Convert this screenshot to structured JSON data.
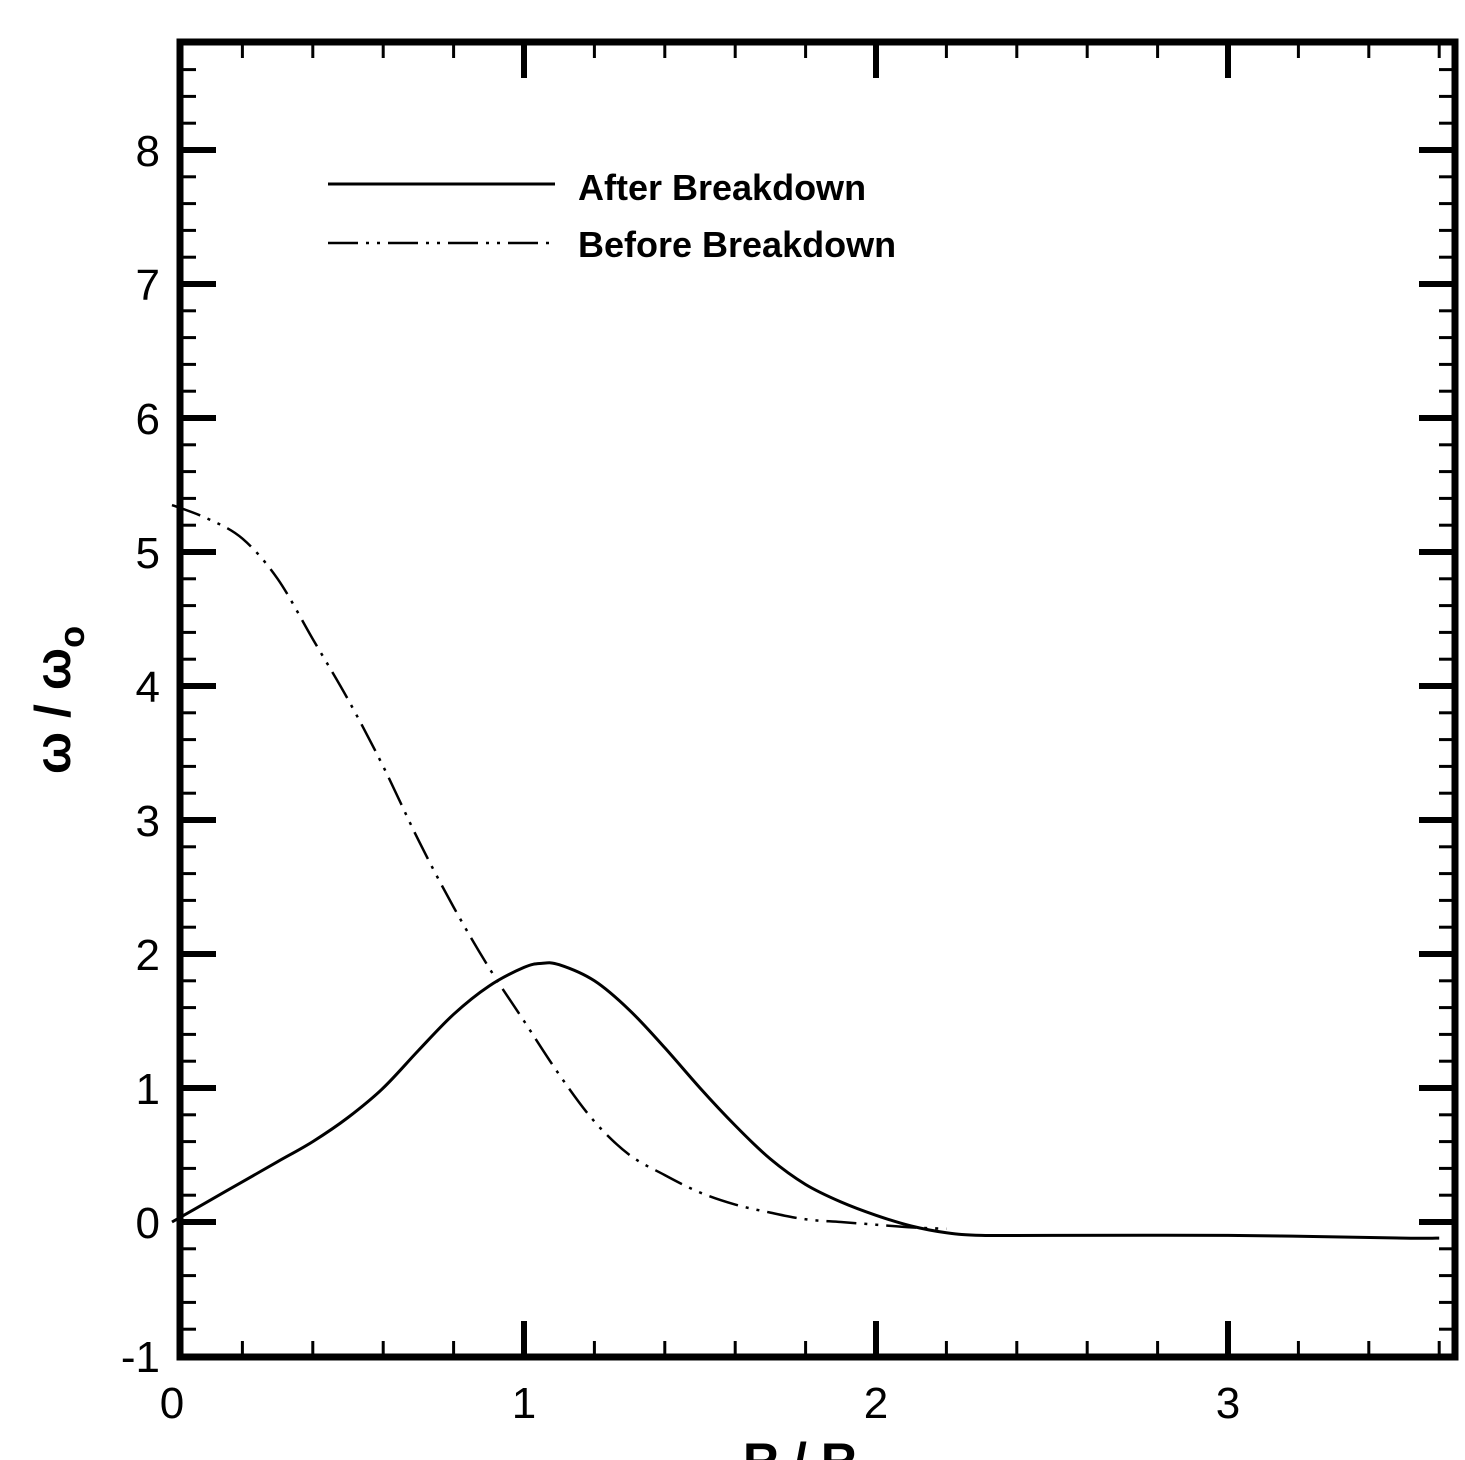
{
  "chart_data": {
    "type": "line",
    "xlabel": "R / R",
    "ylabel": "ω / ω",
    "ylabel_subscript": "o",
    "xlim": [
      0,
      3.6
    ],
    "ylim": [
      -1,
      8.8
    ],
    "x_ticks": [
      "0",
      "1",
      "2",
      "3"
    ],
    "y_ticks": [
      "-1",
      "0",
      "1",
      "2",
      "3",
      "4",
      "5",
      "6",
      "7",
      "8"
    ],
    "grid": false,
    "legend_position": "top-left",
    "series": [
      {
        "name": "After Breakdown",
        "style": "solid",
        "x": [
          0,
          0.1,
          0.2,
          0.3,
          0.4,
          0.5,
          0.6,
          0.7,
          0.8,
          0.9,
          1.0,
          1.05,
          1.1,
          1.2,
          1.3,
          1.4,
          1.5,
          1.6,
          1.7,
          1.8,
          1.9,
          2.0,
          2.1,
          2.2,
          2.3,
          2.5,
          3.0,
          3.5,
          3.6
        ],
        "y": [
          0.0,
          0.15,
          0.3,
          0.45,
          0.6,
          0.78,
          1.0,
          1.28,
          1.55,
          1.76,
          1.9,
          1.93,
          1.92,
          1.8,
          1.58,
          1.3,
          1.0,
          0.72,
          0.47,
          0.28,
          0.15,
          0.05,
          -0.03,
          -0.08,
          -0.1,
          -0.1,
          -0.1,
          -0.12,
          -0.12
        ]
      },
      {
        "name": "Before Breakdown",
        "style": "dash-dot-dot",
        "x": [
          0,
          0.1,
          0.2,
          0.3,
          0.4,
          0.5,
          0.6,
          0.7,
          0.8,
          0.9,
          1.0,
          1.1,
          1.2,
          1.3,
          1.4,
          1.5,
          1.6,
          1.7,
          1.8,
          1.9,
          2.0,
          2.1,
          2.2
        ],
        "y": [
          5.35,
          5.25,
          5.1,
          4.8,
          4.35,
          3.9,
          3.4,
          2.85,
          2.35,
          1.9,
          1.5,
          1.1,
          0.75,
          0.5,
          0.35,
          0.22,
          0.13,
          0.07,
          0.02,
          0.0,
          -0.02,
          -0.04,
          -0.05
        ]
      }
    ]
  }
}
